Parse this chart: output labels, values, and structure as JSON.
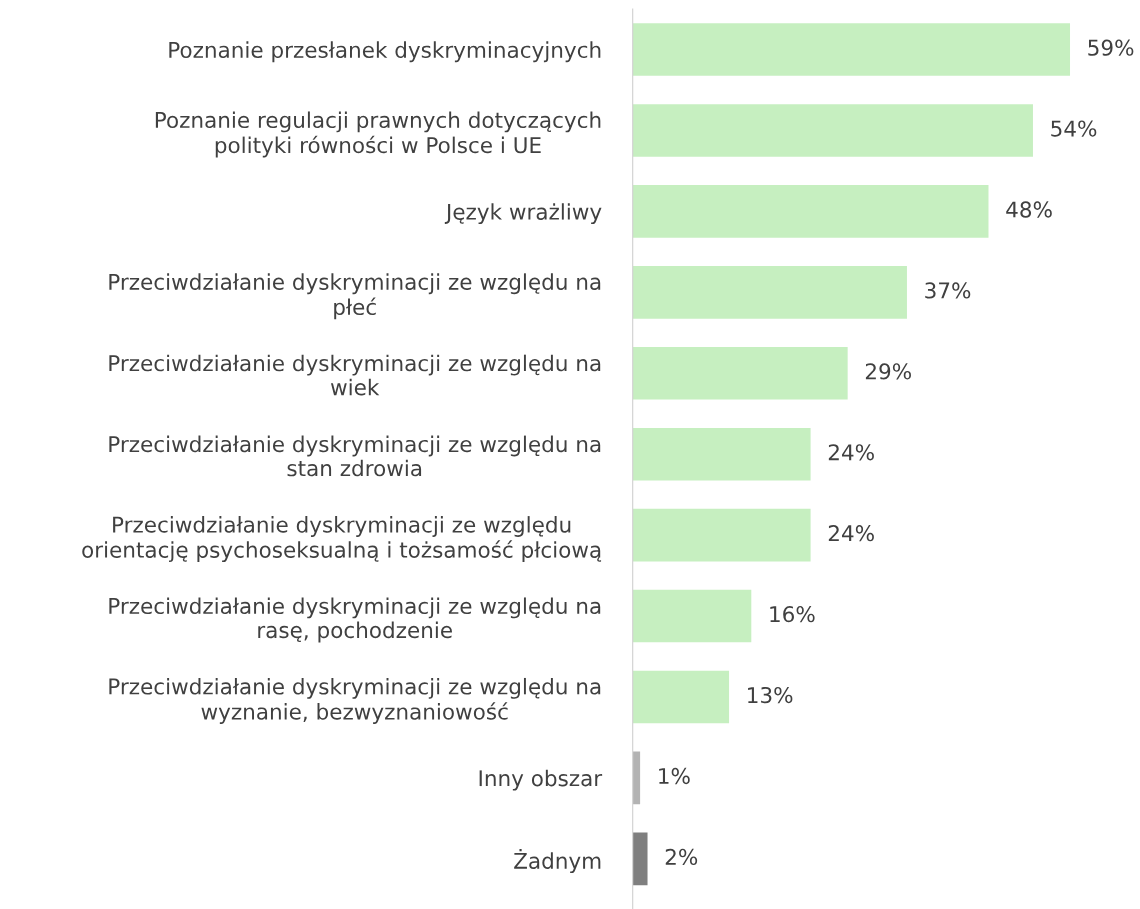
{
  "chart_data": {
    "type": "bar",
    "orientation": "horizontal",
    "categories": [
      "Poznanie przesłanek dyskryminacyjnych",
      "Poznanie regulacji prawnych dotyczących\npolityki równości w Polsce i UE",
      "Język wrażliwy",
      "Przeciwdziałanie dyskryminacji ze względu na\npłeć",
      "Przeciwdziałanie dyskryminacji ze względu na\nwiek",
      "Przeciwdziałanie dyskryminacji ze względu na\nstan zdrowia",
      "Przeciwdziałanie dyskryminacji ze względu\norientację psychoseksualną i tożsamość płciową",
      "Przeciwdziałanie dyskryminacji ze względu na\nrasę, pochodzenie",
      "Przeciwdziałanie dyskryminacji ze względu na\nwyznanie, bezwyznaniowość",
      "Inny obszar",
      "Żadnym"
    ],
    "values": [
      59,
      54,
      48,
      37,
      29,
      24,
      24,
      16,
      13,
      1,
      2
    ],
    "value_labels": [
      "59%",
      "54%",
      "48%",
      "37%",
      "29%",
      "24%",
      "24%",
      "16%",
      "13%",
      "1%",
      "2%"
    ],
    "colors": [
      "#c6efc0",
      "#c6efc0",
      "#c6efc0",
      "#c6efc0",
      "#c6efc0",
      "#c6efc0",
      "#c6efc0",
      "#c6efc0",
      "#c6efc0",
      "#b3b3b3",
      "#7f7f7f"
    ],
    "grid": false,
    "legend": false
  }
}
